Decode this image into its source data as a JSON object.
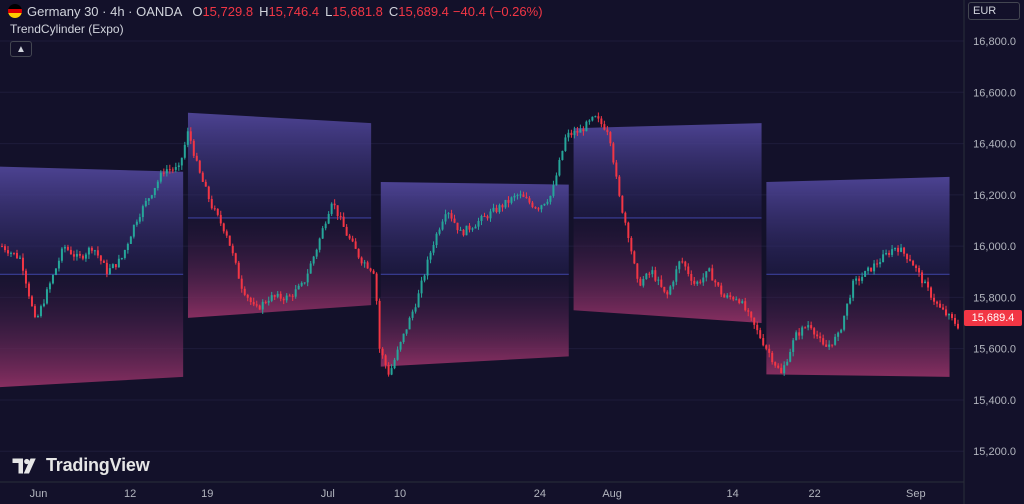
{
  "header": {
    "symbol": "Germany 30 · 4h · OANDA",
    "ohlc": [
      {
        "key": "O",
        "value": "15,729.8"
      },
      {
        "key": "H",
        "value": "15,746.4"
      },
      {
        "key": "L",
        "value": "15,681.8"
      },
      {
        "key": "C",
        "value": "15,689.4"
      }
    ],
    "change": "−40.4 (−0.26%)",
    "indicator": "TrendCylinder (Expo)",
    "collapse_icon": "chevron-up-icon"
  },
  "currency": "EUR",
  "last_price": "15,689.4",
  "brand": "TradingView",
  "colors": {
    "background": "#13112a",
    "up": "#26a69a",
    "down": "#f23645",
    "upper_band": "#4b3f8f",
    "lower_band": "#8a2f5f",
    "mid_line": "#3b3f9a"
  },
  "chart_data": {
    "type": "candlestick",
    "title": "",
    "x_ticks": [
      "Jun",
      "12",
      "19",
      "Jul",
      "10",
      "24",
      "Aug",
      "14",
      "22",
      "Sep"
    ],
    "y_ticks": [
      15200,
      15400,
      15600,
      15800,
      16000,
      16200,
      16400,
      16600,
      16800
    ],
    "y_tick_labels": [
      "15,200.0",
      "15,400.0",
      "15,600.0",
      "15,800.0",
      "16,000.0",
      "16,200.0",
      "16,400.0",
      "16,600.0",
      "16,800.0"
    ],
    "ylim": [
      15080,
      16960
    ],
    "x_tick_pos": [
      0.04,
      0.135,
      0.215,
      0.34,
      0.415,
      0.56,
      0.635,
      0.76,
      0.845,
      0.95
    ],
    "price_path": [
      [
        0.0,
        16000
      ],
      [
        0.02,
        15950
      ],
      [
        0.035,
        15700
      ],
      [
        0.05,
        15850
      ],
      [
        0.065,
        16000
      ],
      [
        0.08,
        15950
      ],
      [
        0.095,
        16000
      ],
      [
        0.11,
        15900
      ],
      [
        0.125,
        15950
      ],
      [
        0.14,
        16100
      ],
      [
        0.155,
        16200
      ],
      [
        0.17,
        16300
      ],
      [
        0.185,
        16300
      ],
      [
        0.195,
        16450
      ],
      [
        0.205,
        16300
      ],
      [
        0.22,
        16150
      ],
      [
        0.235,
        16050
      ],
      [
        0.25,
        15850
      ],
      [
        0.265,
        15750
      ],
      [
        0.28,
        15800
      ],
      [
        0.3,
        15800
      ],
      [
        0.315,
        15850
      ],
      [
        0.33,
        16000
      ],
      [
        0.345,
        16180
      ],
      [
        0.36,
        16050
      ],
      [
        0.375,
        15950
      ],
      [
        0.39,
        15900
      ],
      [
        0.395,
        15600
      ],
      [
        0.405,
        15500
      ],
      [
        0.42,
        15650
      ],
      [
        0.435,
        15800
      ],
      [
        0.45,
        16000
      ],
      [
        0.465,
        16150
      ],
      [
        0.48,
        16050
      ],
      [
        0.5,
        16100
      ],
      [
        0.52,
        16150
      ],
      [
        0.54,
        16200
      ],
      [
        0.56,
        16150
      ],
      [
        0.575,
        16200
      ],
      [
        0.59,
        16430
      ],
      [
        0.605,
        16450
      ],
      [
        0.62,
        16500
      ],
      [
        0.635,
        16450
      ],
      [
        0.645,
        16200
      ],
      [
        0.655,
        16050
      ],
      [
        0.665,
        15850
      ],
      [
        0.68,
        15900
      ],
      [
        0.695,
        15800
      ],
      [
        0.71,
        15950
      ],
      [
        0.725,
        15850
      ],
      [
        0.74,
        15900
      ],
      [
        0.755,
        15800
      ],
      [
        0.77,
        15800
      ],
      [
        0.785,
        15700
      ],
      [
        0.8,
        15600
      ],
      [
        0.815,
        15500
      ],
      [
        0.83,
        15650
      ],
      [
        0.845,
        15700
      ],
      [
        0.86,
        15600
      ],
      [
        0.875,
        15650
      ],
      [
        0.89,
        15850
      ],
      [
        0.905,
        15900
      ],
      [
        0.92,
        15950
      ],
      [
        0.935,
        16000
      ],
      [
        0.95,
        15950
      ],
      [
        0.965,
        15850
      ],
      [
        0.98,
        15760
      ],
      [
        1.0,
        15690
      ]
    ],
    "segments": [
      {
        "x0": 0.0,
        "x1": 0.19,
        "upper": [
          16310,
          16290
        ],
        "mid": 15890,
        "lower": [
          15450,
          15490
        ]
      },
      {
        "x0": 0.195,
        "x1": 0.385,
        "upper": [
          16520,
          16480
        ],
        "mid": 16110,
        "lower": [
          15720,
          15770
        ]
      },
      {
        "x0": 0.395,
        "x1": 0.59,
        "upper": [
          16250,
          16240
        ],
        "mid": 15890,
        "lower": [
          15530,
          15570
        ]
      },
      {
        "x0": 0.595,
        "x1": 0.79,
        "upper": [
          16460,
          16480
        ],
        "mid": 16110,
        "lower": [
          15750,
          15700
        ]
      },
      {
        "x0": 0.795,
        "x1": 0.985,
        "upper": [
          16250,
          16270
        ],
        "mid": 15890,
        "lower": [
          15500,
          15490
        ]
      }
    ]
  }
}
